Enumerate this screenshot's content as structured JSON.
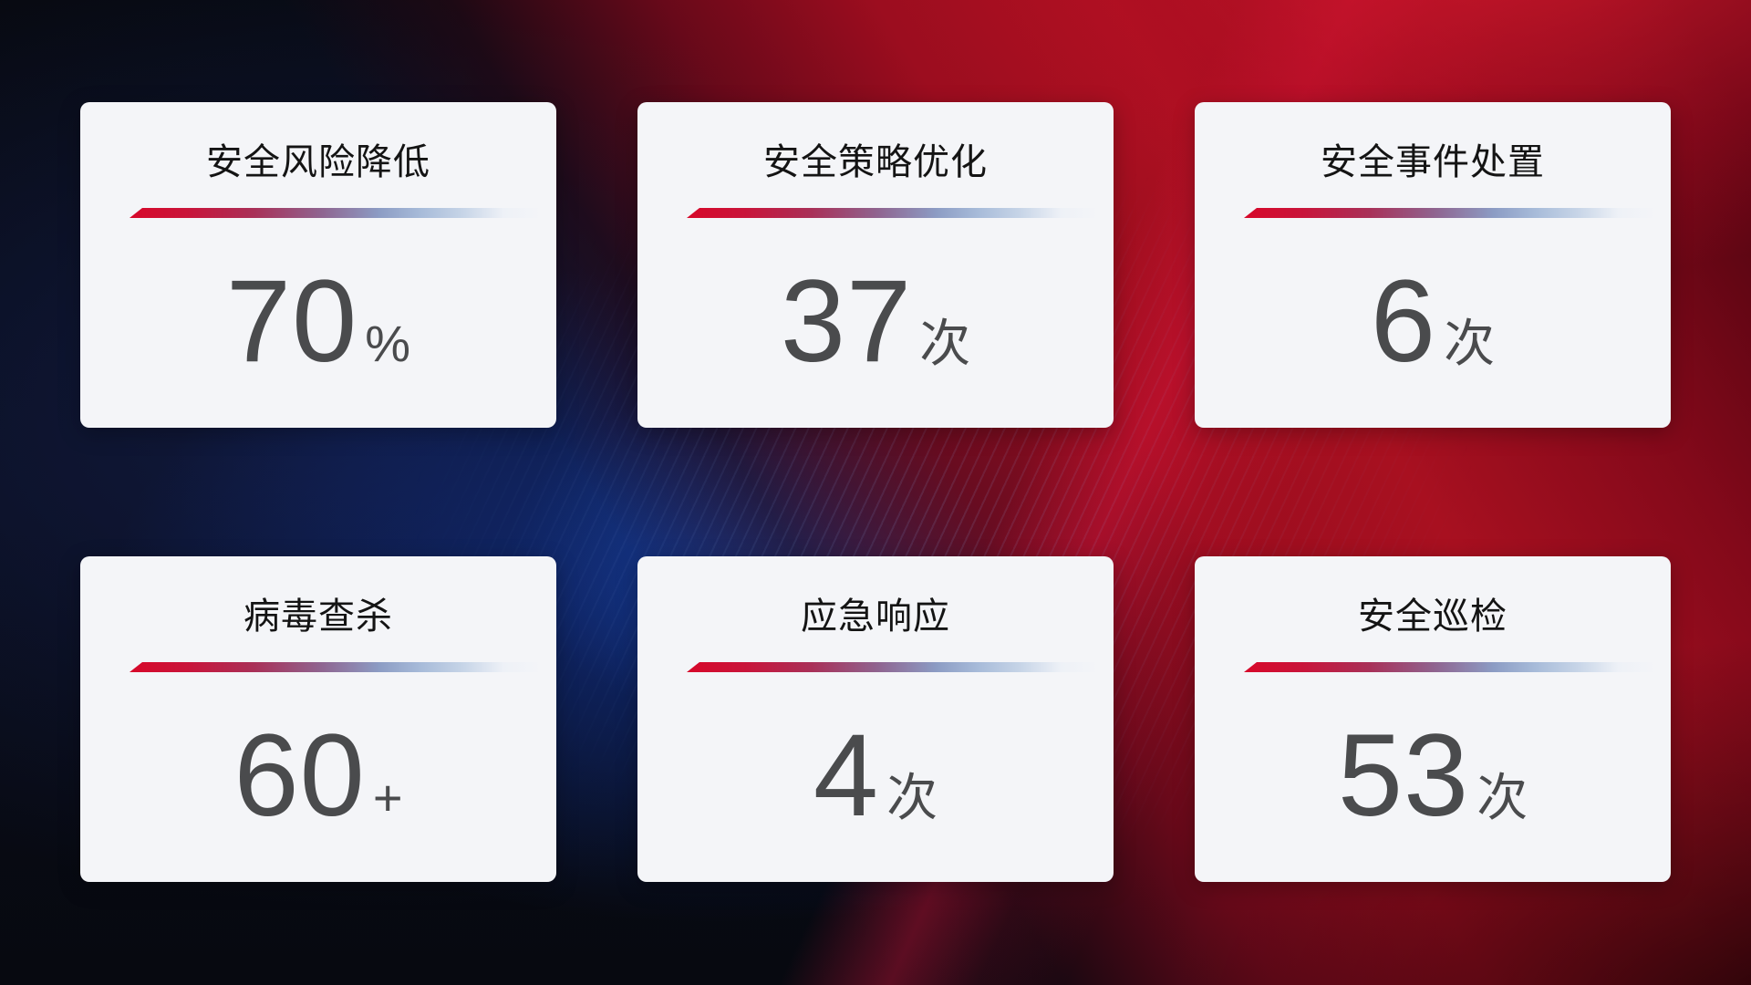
{
  "cards": [
    {
      "title": "安全风险降低",
      "value": "70",
      "unit": "%"
    },
    {
      "title": "安全策略优化",
      "value": "37",
      "unit": "次"
    },
    {
      "title": "安全事件处置",
      "value": "6",
      "unit": "次"
    },
    {
      "title": "病毒查杀",
      "value": "60",
      "unit": "+"
    },
    {
      "title": "应急响应",
      "value": "4",
      "unit": "次"
    },
    {
      "title": "安全巡检",
      "value": "53",
      "unit": "次"
    }
  ],
  "theme": {
    "card_background": "#f4f5f8",
    "title_color": "#141414",
    "value_color": "#4a4b4d",
    "accent_red": "#d7082a",
    "accent_blue": "#a7bbd9",
    "background_navy": "#0a1124",
    "background_blue_glow": "#1a56cc",
    "background_red": "#9c0d1f",
    "background_red_bright": "#c21429"
  }
}
